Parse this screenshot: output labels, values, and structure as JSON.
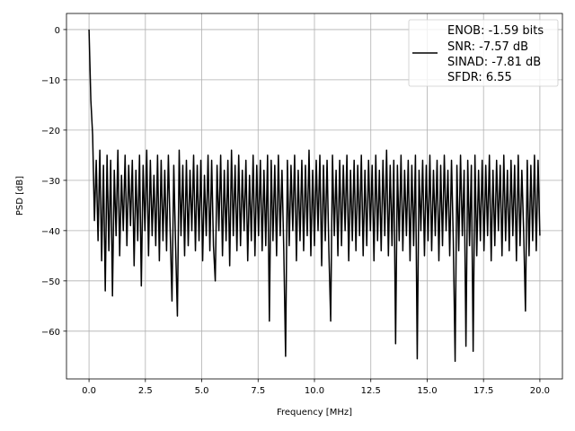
{
  "chart_data": {
    "type": "line",
    "title": "",
    "xlabel": "Frequency [MHz]",
    "ylabel": "PSD [dB]",
    "xlim": [
      -1.0,
      21.0
    ],
    "ylim": [
      -69.5,
      3.2
    ],
    "xticks": [
      0.0,
      2.5,
      5.0,
      7.5,
      10.0,
      12.5,
      15.0,
      17.5,
      20.0
    ],
    "xtick_labels": [
      "0.0",
      "2.5",
      "5.0",
      "7.5",
      "10.0",
      "12.5",
      "15.0",
      "17.5",
      "20.0"
    ],
    "yticks": [
      0,
      -10,
      -20,
      -30,
      -40,
      -50,
      -60
    ],
    "ytick_labels": [
      "0",
      "−10",
      "−20",
      "−30",
      "−40",
      "−50",
      "−60"
    ],
    "grid": true,
    "legend": {
      "placement": "top-right",
      "lines": [
        "ENOB: -1.59 bits",
        "SNR: -7.57 dB",
        "SINAD: -7.81 dB",
        "SFDR: 6.55"
      ]
    },
    "series": [
      {
        "name": "PSD",
        "color": "#000000",
        "x_start": 0.0,
        "x_step": 0.08,
        "values": [
          0,
          -14,
          -21,
          -38,
          -26,
          -42,
          -24,
          -46,
          -27,
          -52,
          -25,
          -44,
          -26,
          -53,
          -28,
          -41,
          -24,
          -45,
          -29,
          -40,
          -25,
          -43,
          -27,
          -39,
          -26,
          -47,
          -28,
          -42,
          -25,
          -51,
          -27,
          -40,
          -24,
          -45,
          -26,
          -41,
          -29,
          -43,
          -25,
          -46,
          -26,
          -42,
          -28,
          -44,
          -25,
          -40,
          -54,
          -27,
          -43,
          -57,
          -24,
          -41,
          -27,
          -45,
          -26,
          -43,
          -28,
          -40,
          -25,
          -44,
          -27,
          -42,
          -26,
          -46,
          -29,
          -41,
          -25,
          -44,
          -26,
          -43,
          -50,
          -27,
          -40,
          -25,
          -45,
          -28,
          -42,
          -26,
          -47,
          -24,
          -41,
          -27,
          -44,
          -25,
          -43,
          -28,
          -40,
          -26,
          -46,
          -29,
          -42,
          -25,
          -45,
          -27,
          -41,
          -26,
          -44,
          -28,
          -43,
          -25,
          -58,
          -26,
          -42,
          -27,
          -45,
          -25,
          -41,
          -28,
          -44,
          -65,
          -26,
          -43,
          -27,
          -40,
          -25,
          -46,
          -28,
          -42,
          -26,
          -44,
          -27,
          -41,
          -24,
          -45,
          -28,
          -43,
          -26,
          -40,
          -25,
          -47,
          -27,
          -42,
          -26,
          -44,
          -58,
          -25,
          -41,
          -28,
          -45,
          -26,
          -43,
          -27,
          -40,
          -25,
          -46,
          -28,
          -42,
          -26,
          -44,
          -27,
          -41,
          -25,
          -45,
          -28,
          -43,
          -26,
          -40,
          -27,
          -46,
          -25,
          -42,
          -28,
          -44,
          -26,
          -41,
          -24,
          -45,
          -27,
          -43,
          -26,
          -62.5,
          -27,
          -42,
          -25,
          -44,
          -28,
          -41,
          -26,
          -46,
          -27,
          -43,
          -25,
          -65.5,
          -28,
          -40,
          -26,
          -45,
          -27,
          -42,
          -25,
          -44,
          -28,
          -41,
          -26,
          -46,
          -27,
          -43,
          -25,
          -40,
          -28,
          -45,
          -26,
          -42,
          -66,
          -27,
          -44,
          -25,
          -41,
          -28,
          -63,
          -26,
          -43,
          -27,
          -64,
          -25,
          -45,
          -28,
          -42,
          -26,
          -44,
          -27,
          -41,
          -25,
          -46,
          -28,
          -43,
          -26,
          -40,
          -27,
          -45,
          -25,
          -42,
          -28,
          -44,
          -26,
          -41,
          -27,
          -46,
          -25,
          -43,
          -28,
          -40,
          -56,
          -26,
          -45,
          -27,
          -42,
          -25,
          -44,
          -26,
          -41
        ]
      }
    ]
  }
}
